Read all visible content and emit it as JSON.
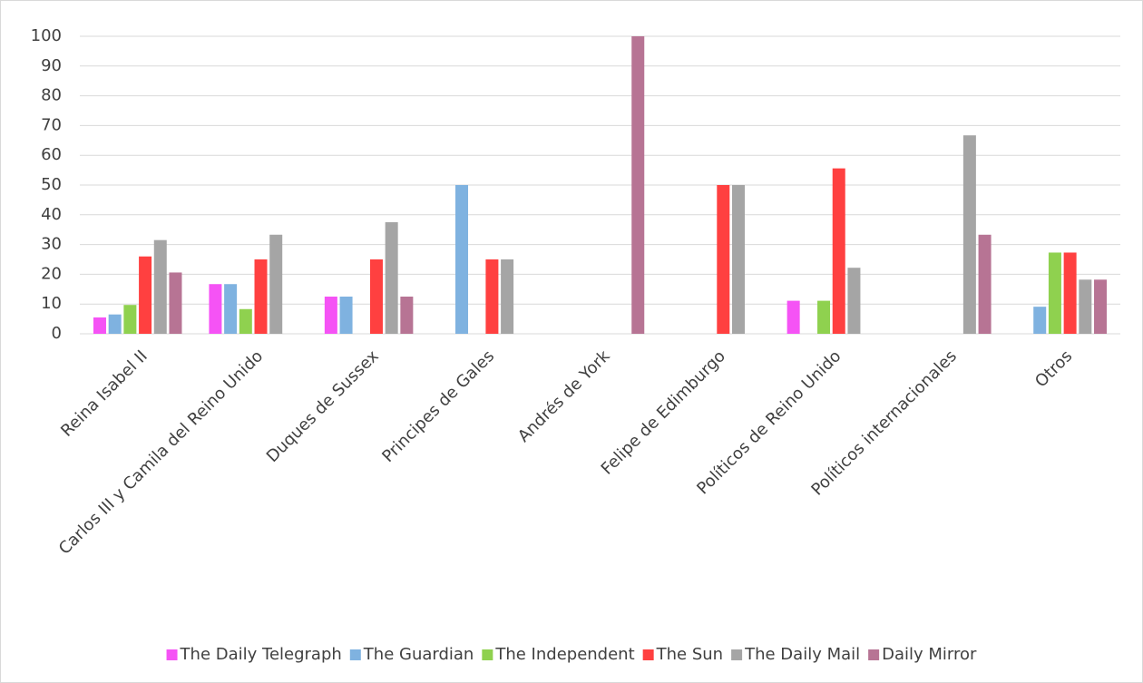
{
  "chart_data": {
    "type": "bar",
    "categories": [
      "Reina Isabel II",
      "Carlos III y Camila del Reino Unido",
      "Duques de Sussex",
      "Principes de Gales",
      "Andrés de York",
      "Felipe de Edimburgo",
      "Políticos de Reino Unido",
      "Políticos internacionales",
      "Otros"
    ],
    "series": [
      {
        "name": "The Daily Telegraph",
        "color": "#f553f5",
        "values": [
          5.5,
          16.7,
          12.5,
          0,
          0,
          0,
          11.1,
          0,
          0
        ]
      },
      {
        "name": "The Guardian",
        "color": "#7fb2e0",
        "values": [
          6.5,
          16.7,
          12.5,
          50,
          0,
          0,
          0,
          0,
          9.1
        ]
      },
      {
        "name": "The Independent",
        "color": "#8fd14f",
        "values": [
          9.7,
          8.3,
          0,
          0,
          0,
          0,
          11.1,
          0,
          27.3
        ]
      },
      {
        "name": "The Sun",
        "color": "#ff4040",
        "values": [
          26,
          25,
          25,
          25,
          0,
          50,
          55.6,
          0,
          27.3
        ]
      },
      {
        "name": "The Daily Mail",
        "color": "#a5a5a5",
        "values": [
          31.5,
          33.3,
          37.5,
          25,
          0,
          50,
          22.2,
          66.7,
          18.2
        ]
      },
      {
        "name": "Daily Mirror",
        "color": "#b77494",
        "values": [
          20.6,
          0,
          12.5,
          0,
          100,
          0,
          0,
          33.3,
          18.2
        ]
      }
    ],
    "ylim": [
      0,
      100
    ],
    "yticks": [
      0,
      10,
      20,
      30,
      40,
      50,
      60,
      70,
      80,
      90,
      100
    ],
    "grid": true,
    "legend": "bottom"
  }
}
